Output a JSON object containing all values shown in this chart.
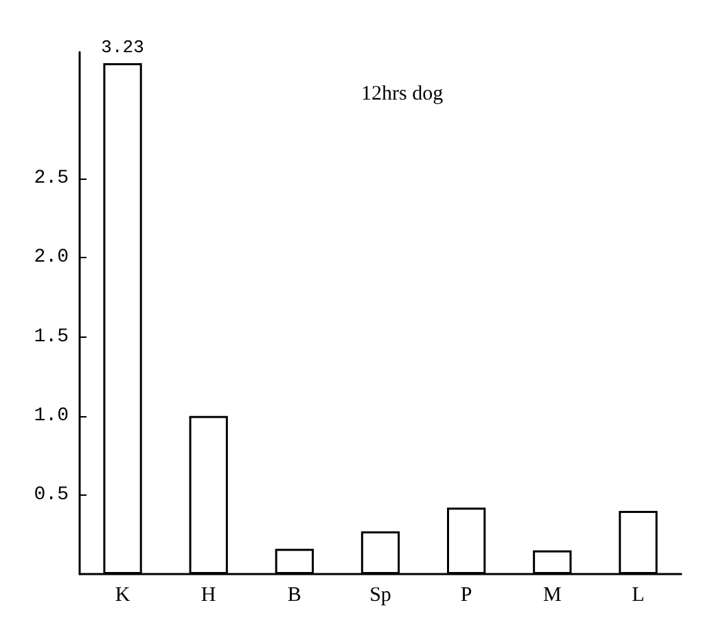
{
  "chart_data": {
    "type": "bar",
    "title": "12hrs dog",
    "categories": [
      "K",
      "H",
      "B",
      "Sp",
      "P",
      "M",
      "L"
    ],
    "values": [
      3.23,
      1.0,
      0.16,
      0.27,
      0.42,
      0.15,
      0.4
    ],
    "value_labels": [
      "3.23",
      null,
      null,
      null,
      null,
      null,
      null
    ],
    "color": "#ffffff",
    "ylim": [
      0,
      3.3
    ],
    "yticks": [
      0.5,
      {
        "value": 1,
        "label": "1.0"
      },
      1.5,
      {
        "value": 2,
        "label": "2.0"
      },
      2.5
    ],
    "grid": false
  }
}
